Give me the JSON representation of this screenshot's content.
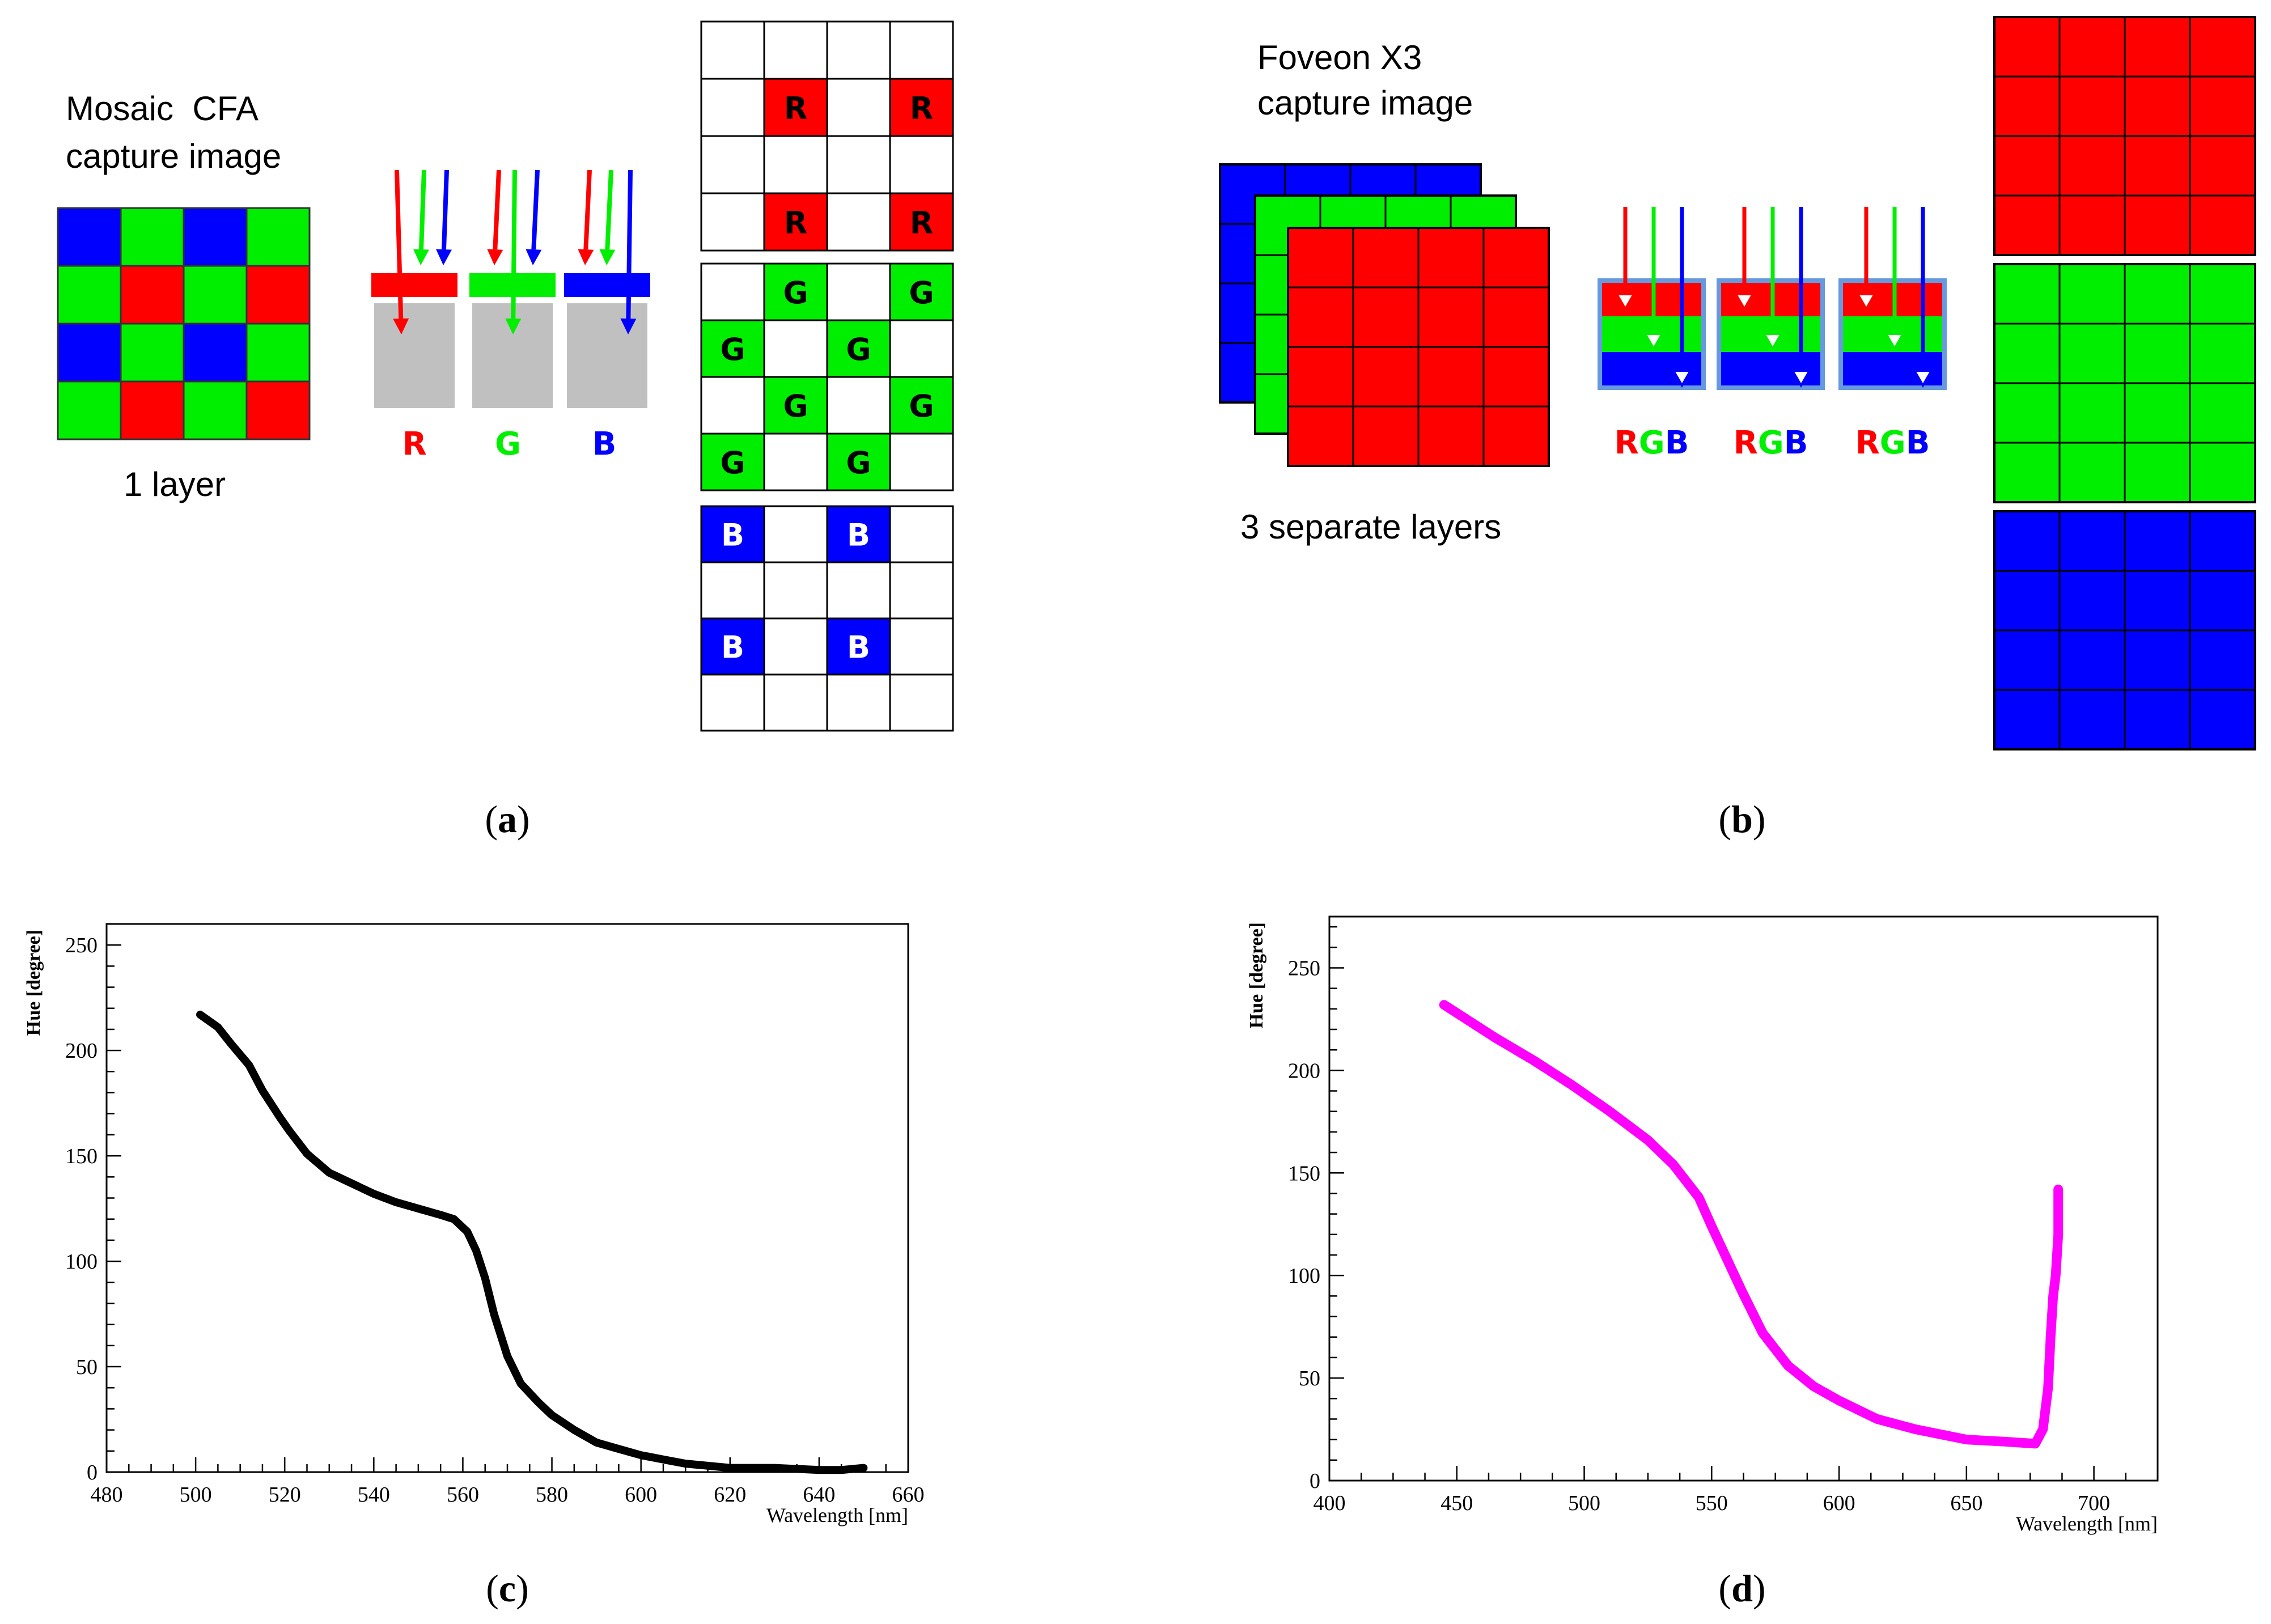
{
  "panel_a": {
    "caption": "a",
    "title_line1": "Mosaic  CFA",
    "title_line2": "capture image",
    "layer_label": "1 layer",
    "letters": {
      "red": "R",
      "green": "G",
      "blue": "B"
    },
    "mosaic_rows": [
      [
        "blue",
        "green",
        "blue",
        "green"
      ],
      [
        "green",
        "red",
        "green",
        "red"
      ],
      [
        "blue",
        "green",
        "blue",
        "green"
      ],
      [
        "green",
        "red",
        "green",
        "red"
      ]
    ],
    "grid_letters": {
      "R": "R",
      "G": "G",
      "B": "B"
    }
  },
  "panel_b": {
    "caption": "b",
    "title_line1": "Foveon X3",
    "title_line2": "capture image",
    "layers_label": "3 separate layers",
    "rgb_labels": [
      {
        "r": "R",
        "g": "G",
        "b": "B"
      },
      {
        "r": "R",
        "g": "G",
        "b": "B"
      },
      {
        "r": "R",
        "g": "G",
        "b": "B"
      }
    ]
  },
  "colors": {
    "red": "#ff0000",
    "green": "#00ee00",
    "blue": "#0000ff",
    "gray": "#c0c0c0",
    "magenta": "#ff00ff",
    "black": "#000000",
    "sensor_border": "#6699dd"
  },
  "chart_data": [
    {
      "type": "line",
      "caption": "c",
      "title": "",
      "xlabel": "Wavelength [nm]",
      "ylabel": "Hue [degree]",
      "xlim": [
        480,
        660
      ],
      "ylim": [
        0,
        260
      ],
      "xticks": [
        480,
        500,
        520,
        540,
        560,
        580,
        600,
        620,
        640,
        660
      ],
      "yticks": [
        0,
        50,
        100,
        150,
        200,
        250
      ],
      "color": "#000000",
      "series": [
        {
          "name": "hue",
          "x": [
            501,
            505,
            508,
            512,
            515,
            519,
            521,
            525,
            530,
            535,
            540,
            545,
            550,
            555,
            558,
            561,
            563,
            565,
            567,
            570,
            573,
            577,
            580,
            585,
            590,
            595,
            600,
            605,
            610,
            615,
            620,
            630,
            640,
            645,
            650
          ],
          "y": [
            217,
            211,
            203,
            193,
            181,
            168,
            162,
            151,
            142,
            137,
            132,
            128,
            125,
            122,
            120,
            114,
            105,
            92,
            75,
            55,
            42,
            33,
            27,
            20,
            14,
            11,
            8,
            6,
            4,
            3,
            2,
            2,
            1,
            1,
            2
          ]
        }
      ]
    },
    {
      "type": "line",
      "caption": "d",
      "title": "",
      "xlabel": "Wavelength [nm]",
      "ylabel": "Hue [degree]",
      "xlim": [
        400,
        725
      ],
      "ylim": [
        0,
        275
      ],
      "xticks": [
        400,
        450,
        500,
        550,
        600,
        650,
        700
      ],
      "yticks": [
        0,
        50,
        100,
        150,
        200,
        250
      ],
      "color": "#ff00ff",
      "series": [
        {
          "name": "hue",
          "x": [
            445,
            455,
            465,
            480,
            495,
            510,
            525,
            535,
            545,
            550,
            556,
            562,
            570,
            580,
            590,
            600,
            615,
            630,
            650,
            665,
            677,
            680,
            682,
            683,
            684,
            685,
            686,
            686
          ],
          "y": [
            232,
            224,
            216,
            205,
            193,
            180,
            166,
            154,
            138,
            124,
            108,
            92,
            72,
            56,
            46,
            39,
            30,
            25,
            20,
            19,
            18,
            25,
            45,
            70,
            90,
            100,
            120,
            142
          ]
        }
      ]
    }
  ]
}
